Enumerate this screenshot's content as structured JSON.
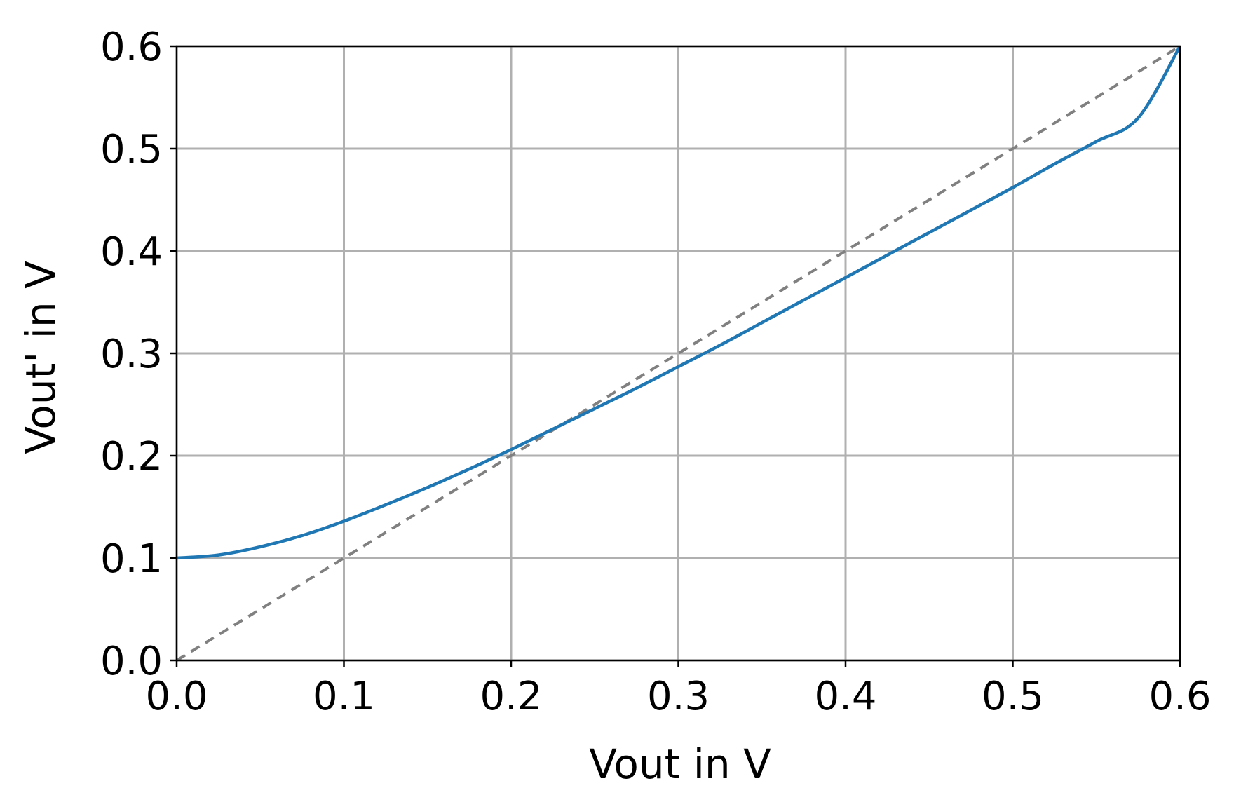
{
  "chart_data": {
    "type": "line",
    "title": "",
    "xlabel": "Vout in V",
    "ylabel": "Vout' in V",
    "xlim": [
      0.0,
      0.6
    ],
    "ylim": [
      0.0,
      0.6
    ],
    "xticks": [
      "0.0",
      "0.1",
      "0.2",
      "0.3",
      "0.4",
      "0.5",
      "0.6"
    ],
    "yticks": [
      "0.0",
      "0.1",
      "0.2",
      "0.3",
      "0.4",
      "0.5",
      "0.6"
    ],
    "grid": true,
    "legend": false,
    "series": [
      {
        "style": "solid",
        "color": "#1f77b4",
        "x": [
          0.0,
          0.025,
          0.05,
          0.075,
          0.1,
          0.125,
          0.15,
          0.175,
          0.2,
          0.225,
          0.25,
          0.275,
          0.3,
          0.325,
          0.35,
          0.375,
          0.4,
          0.425,
          0.45,
          0.475,
          0.5,
          0.525,
          0.55,
          0.575,
          0.6
        ],
        "y": [
          0.1,
          0.103,
          0.111,
          0.122,
          0.136,
          0.152,
          0.169,
          0.187,
          0.206,
          0.226,
          0.246,
          0.266,
          0.287,
          0.308,
          0.33,
          0.352,
          0.374,
          0.396,
          0.418,
          0.44,
          0.462,
          0.485,
          0.507,
          0.53,
          0.6
        ]
      },
      {
        "style": "dashed",
        "color": "#808080",
        "x": [
          0.0,
          0.6
        ],
        "y": [
          0.0,
          0.6
        ]
      }
    ]
  }
}
